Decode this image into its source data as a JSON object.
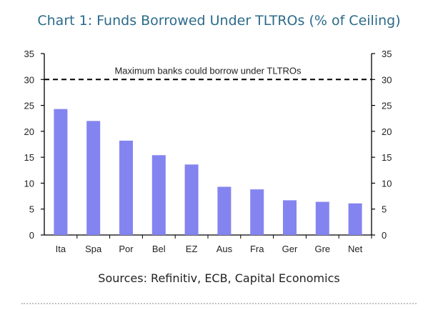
{
  "chart_data": {
    "type": "bar",
    "title": "Chart 1: Funds Borrowed Under TLTROs (% of Ceiling)",
    "categories": [
      "Ita",
      "Spa",
      "Por",
      "Bel",
      "EZ",
      "Aus",
      "Fra",
      "Ger",
      "Gre",
      "Net"
    ],
    "values": [
      24.3,
      22.0,
      18.2,
      15.4,
      13.6,
      9.3,
      8.8,
      6.7,
      6.4,
      6.1
    ],
    "ylim": [
      0,
      35
    ],
    "yticks": [
      0,
      5,
      10,
      15,
      20,
      25,
      30,
      35
    ],
    "bar_color": "#8484f0",
    "reference_line": {
      "value": 30,
      "label": "Maximum banks could borrow under TLTROs"
    },
    "source": "Sources: Refinitiv, ECB, Capital Economics"
  }
}
